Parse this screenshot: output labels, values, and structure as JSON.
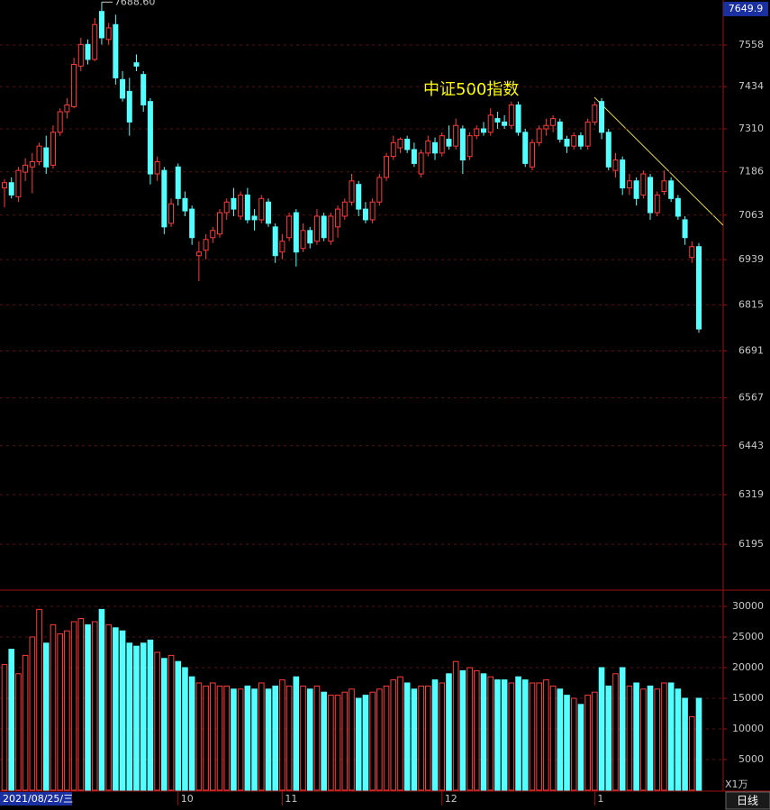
{
  "chart_data": {
    "type": "candlestick",
    "title": "中证500指数",
    "log_scale": true,
    "grid": true,
    "ylim": [
      6083,
      7695
    ],
    "yticks": [
      6195,
      6319,
      6443,
      6567,
      6691,
      6815,
      6939,
      7063,
      7186,
      7310,
      7434,
      7558
    ],
    "up_color": "#ff3c3c",
    "down_color": "#54ffff",
    "cursor_price": "7649.9",
    "cursor_date": "2021/08/25/三",
    "high_label": "7688.60",
    "period": "日线",
    "categories": [
      null,
      null,
      null,
      null,
      null,
      null,
      null,
      null,
      null,
      null,
      null,
      null,
      null,
      null,
      null,
      null,
      null,
      null,
      null,
      null,
      null,
      null,
      null,
      null,
      null,
      "10",
      null,
      null,
      null,
      null,
      null,
      null,
      null,
      null,
      null,
      null,
      null,
      null,
      null,
      null,
      "11",
      null,
      null,
      null,
      null,
      null,
      null,
      null,
      null,
      null,
      null,
      null,
      null,
      null,
      null,
      null,
      null,
      null,
      null,
      null,
      null,
      null,
      null,
      "12",
      null,
      null,
      null,
      null,
      null,
      null,
      null,
      null,
      null,
      null,
      null,
      null,
      null,
      null,
      null,
      null,
      null,
      null,
      null,
      null,
      null,
      "1",
      null,
      null,
      null,
      null,
      null,
      null,
      null,
      null,
      null,
      null,
      null,
      null,
      null,
      null,
      null
    ],
    "candles": [
      [
        7140,
        7165,
        7085,
        7155
      ],
      [
        7155,
        7170,
        7110,
        7120
      ],
      [
        7115,
        7200,
        7100,
        7190
      ],
      [
        7185,
        7225,
        7160,
        7205
      ],
      [
        7200,
        7240,
        7125,
        7215
      ],
      [
        7215,
        7270,
        7205,
        7260
      ],
      [
        7255,
        7290,
        7180,
        7200
      ],
      [
        7205,
        7320,
        7195,
        7300
      ],
      [
        7300,
        7370,
        7290,
        7360
      ],
      [
        7360,
        7400,
        7340,
        7380
      ],
      [
        7375,
        7520,
        7370,
        7500
      ],
      [
        7495,
        7580,
        7480,
        7560
      ],
      [
        7560,
        7575,
        7500,
        7515
      ],
      [
        7515,
        7640,
        7510,
        7620
      ],
      [
        7660,
        7688.6,
        7560,
        7580
      ],
      [
        7575,
        7625,
        7560,
        7610
      ],
      [
        7620,
        7650,
        7440,
        7460
      ],
      [
        7455,
        7480,
        7390,
        7400
      ],
      [
        7420,
        7460,
        7290,
        7330
      ],
      [
        7505,
        7530,
        7480,
        7495
      ],
      [
        7470,
        7480,
        7360,
        7380
      ],
      [
        7390,
        7400,
        7150,
        7180
      ],
      [
        7180,
        7230,
        7160,
        7215
      ],
      [
        7190,
        7200,
        7010,
        7030
      ],
      [
        7040,
        7110,
        7030,
        7095
      ],
      [
        7200,
        7210,
        7090,
        7110
      ],
      [
        7110,
        7130,
        7060,
        7075
      ],
      [
        7080,
        7090,
        6980,
        7000
      ],
      [
        6950,
        6990,
        6880,
        6960
      ],
      [
        6965,
        7010,
        6940,
        6995
      ],
      [
        7000,
        7030,
        6985,
        7020
      ],
      [
        7010,
        7080,
        7000,
        7070
      ],
      [
        7070,
        7110,
        7050,
        7100
      ],
      [
        7110,
        7140,
        7060,
        7080
      ],
      [
        7060,
        7130,
        7050,
        7120
      ],
      [
        7120,
        7140,
        7040,
        7050
      ],
      [
        7060,
        7080,
        7020,
        7050
      ],
      [
        7050,
        7120,
        7040,
        7110
      ],
      [
        7100,
        7110,
        7030,
        7040
      ],
      [
        7030,
        7040,
        6930,
        6950
      ],
      [
        6960,
        7010,
        6940,
        6990
      ],
      [
        7000,
        7070,
        6990,
        7060
      ],
      [
        7070,
        7080,
        6920,
        6960
      ],
      [
        6970,
        7040,
        6960,
        7020
      ],
      [
        7020,
        7030,
        6970,
        6985
      ],
      [
        6990,
        7080,
        6980,
        7060
      ],
      [
        7060,
        7070,
        6990,
        7000
      ],
      [
        6990,
        7070,
        6980,
        7060
      ],
      [
        7030,
        7090,
        7000,
        7080
      ],
      [
        7060,
        7110,
        7050,
        7100
      ],
      [
        7100,
        7180,
        7090,
        7160
      ],
      [
        7150,
        7160,
        7060,
        7080
      ],
      [
        7080,
        7100,
        7040,
        7050
      ],
      [
        7050,
        7110,
        7040,
        7100
      ],
      [
        7100,
        7180,
        7090,
        7170
      ],
      [
        7170,
        7240,
        7160,
        7230
      ],
      [
        7230,
        7290,
        7220,
        7270
      ],
      [
        7255,
        7285,
        7240,
        7280
      ],
      [
        7280,
        7290,
        7240,
        7250
      ],
      [
        7250,
        7270,
        7200,
        7210
      ],
      [
        7180,
        7250,
        7170,
        7240
      ],
      [
        7240,
        7290,
        7230,
        7275
      ],
      [
        7270,
        7285,
        7220,
        7240
      ],
      [
        7240,
        7300,
        7230,
        7290
      ],
      [
        7280,
        7320,
        7250,
        7260
      ],
      [
        7260,
        7340,
        7250,
        7320
      ],
      [
        7310,
        7320,
        7180,
        7220
      ],
      [
        7230,
        7300,
        7220,
        7290
      ],
      [
        7290,
        7320,
        7280,
        7310
      ],
      [
        7310,
        7330,
        7290,
        7300
      ],
      [
        7300,
        7370,
        7290,
        7350
      ],
      [
        7340,
        7360,
        7310,
        7330
      ],
      [
        7330,
        7350,
        7310,
        7320
      ],
      [
        7320,
        7390,
        7310,
        7380
      ],
      [
        7380,
        7390,
        7290,
        7300
      ],
      [
        7300,
        7310,
        7200,
        7210
      ],
      [
        7200,
        7280,
        7190,
        7270
      ],
      [
        7270,
        7320,
        7260,
        7310
      ],
      [
        7310,
        7340,
        7290,
        7320
      ],
      [
        7320,
        7350,
        7300,
        7340
      ],
      [
        7330,
        7340,
        7270,
        7280
      ],
      [
        7280,
        7290,
        7240,
        7260
      ],
      [
        7260,
        7300,
        7250,
        7290
      ],
      [
        7290,
        7300,
        7250,
        7260
      ],
      [
        7260,
        7340,
        7250,
        7330
      ],
      [
        7330,
        7390,
        7320,
        7380
      ],
      [
        7390,
        7400,
        7280,
        7300
      ],
      [
        7300,
        7310,
        7190,
        7200
      ],
      [
        7190,
        7240,
        7170,
        7220
      ],
      [
        7220,
        7230,
        7120,
        7140
      ],
      [
        7140,
        7180,
        7120,
        7160
      ],
      [
        7160,
        7170,
        7090,
        7110
      ],
      [
        7120,
        7190,
        7110,
        7180
      ],
      [
        7170,
        7180,
        7050,
        7070
      ],
      [
        7070,
        7130,
        7060,
        7120
      ],
      [
        7130,
        7190,
        7120,
        7160
      ],
      [
        7160,
        7170,
        7100,
        7110
      ],
      [
        7110,
        7120,
        7050,
        7060
      ],
      [
        7050,
        7060,
        6980,
        7000
      ],
      [
        6945,
        6990,
        6930,
        6975
      ],
      [
        6975,
        6985,
        6740,
        6750
      ]
    ],
    "volume": {
      "unit": "X1万",
      "ylim": [
        0,
        32350
      ],
      "yticks": [
        5000,
        10000,
        15000,
        20000,
        25000,
        30000
      ],
      "values": [
        20500,
        23000,
        19000,
        22000,
        25000,
        29500,
        24000,
        27000,
        25500,
        26000,
        27500,
        28000,
        27000,
        27500,
        29500,
        27000,
        26500,
        26000,
        24000,
        23500,
        24000,
        24500,
        22500,
        21500,
        22000,
        21000,
        20000,
        18500,
        17500,
        17000,
        17500,
        17000,
        17000,
        16500,
        16500,
        17000,
        16500,
        17500,
        16500,
        17000,
        18000,
        17000,
        18500,
        17000,
        16500,
        17000,
        16000,
        15500,
        15500,
        16000,
        16500,
        15000,
        15500,
        16000,
        16500,
        17000,
        18000,
        18500,
        17500,
        16500,
        17000,
        17000,
        18000,
        17500,
        19000,
        21000,
        19500,
        20000,
        19500,
        19000,
        18500,
        18000,
        18000,
        17500,
        18500,
        18000,
        17500,
        17500,
        18000,
        17000,
        16500,
        15500,
        15000,
        14000,
        15500,
        16000,
        20000,
        17000,
        19000,
        20000,
        17000,
        17500,
        16500,
        17000,
        16500,
        17500,
        17500,
        16500,
        15000,
        12000,
        15000
      ]
    }
  }
}
